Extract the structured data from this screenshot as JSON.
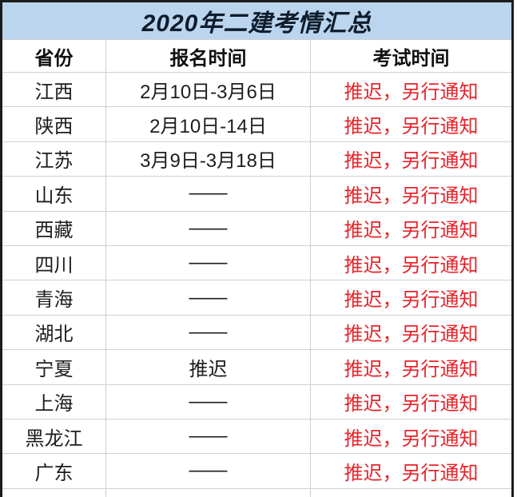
{
  "chart_data": {
    "type": "table",
    "title": "2020年二建考情汇总",
    "columns": [
      "省份",
      "报名时间",
      "考试时间"
    ],
    "rows": [
      [
        "江西",
        "2月10日-3月6日",
        "推迟，另行通知"
      ],
      [
        "陕西",
        "2月10日-14日",
        "推迟，另行通知"
      ],
      [
        "江苏",
        "3月9日-3月18日",
        "推迟，另行通知"
      ],
      [
        "山东",
        "——",
        "推迟，另行通知"
      ],
      [
        "西藏",
        "——",
        "推迟，另行通知"
      ],
      [
        "四川",
        "——",
        "推迟，另行通知"
      ],
      [
        "青海",
        "——",
        "推迟，另行通知"
      ],
      [
        "湖北",
        "——",
        "推迟，另行通知"
      ],
      [
        "宁夏",
        "推迟",
        "推迟，另行通知"
      ],
      [
        "上海",
        "——",
        "推迟，另行通知"
      ],
      [
        "黑龙江",
        "——",
        "推迟，另行通知"
      ],
      [
        "广东",
        "——",
        "推迟，另行通知"
      ]
    ]
  },
  "colors": {
    "title_bar_bg": "#bad5ed",
    "title_text": "#0e1c2c",
    "delayed_text_red": "#e6252b",
    "gridline": "#ccd1d7",
    "outer_border": "#1c1c1c"
  }
}
